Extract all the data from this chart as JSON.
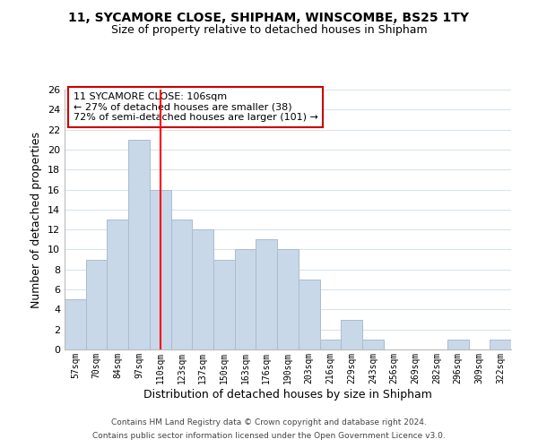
{
  "title": "11, SYCAMORE CLOSE, SHIPHAM, WINSCOMBE, BS25 1TY",
  "subtitle": "Size of property relative to detached houses in Shipham",
  "xlabel": "Distribution of detached houses by size in Shipham",
  "ylabel": "Number of detached properties",
  "bar_labels": [
    "57sqm",
    "70sqm",
    "84sqm",
    "97sqm",
    "110sqm",
    "123sqm",
    "137sqm",
    "150sqm",
    "163sqm",
    "176sqm",
    "190sqm",
    "203sqm",
    "216sqm",
    "229sqm",
    "243sqm",
    "256sqm",
    "269sqm",
    "282sqm",
    "296sqm",
    "309sqm",
    "322sqm"
  ],
  "bar_values": [
    5,
    9,
    13,
    21,
    16,
    13,
    12,
    9,
    10,
    11,
    10,
    7,
    1,
    3,
    1,
    0,
    0,
    0,
    1,
    0,
    1
  ],
  "bar_color": "#c8d8e8",
  "bar_edgecolor": "#aabcce",
  "vline_x": 4,
  "vline_color": "red",
  "ylim": [
    0,
    26
  ],
  "yticks": [
    0,
    2,
    4,
    6,
    8,
    10,
    12,
    14,
    16,
    18,
    20,
    22,
    24,
    26
  ],
  "annotation_title": "11 SYCAMORE CLOSE: 106sqm",
  "annotation_line1": "← 27% of detached houses are smaller (38)",
  "annotation_line2": "72% of semi-detached houses are larger (101) →",
  "annotation_box_color": "#ffffff",
  "annotation_box_edgecolor": "#cc0000",
  "footer1": "Contains HM Land Registry data © Crown copyright and database right 2024.",
  "footer2": "Contains public sector information licensed under the Open Government Licence v3.0.",
  "background_color": "#ffffff",
  "grid_color": "#d8e4ec"
}
